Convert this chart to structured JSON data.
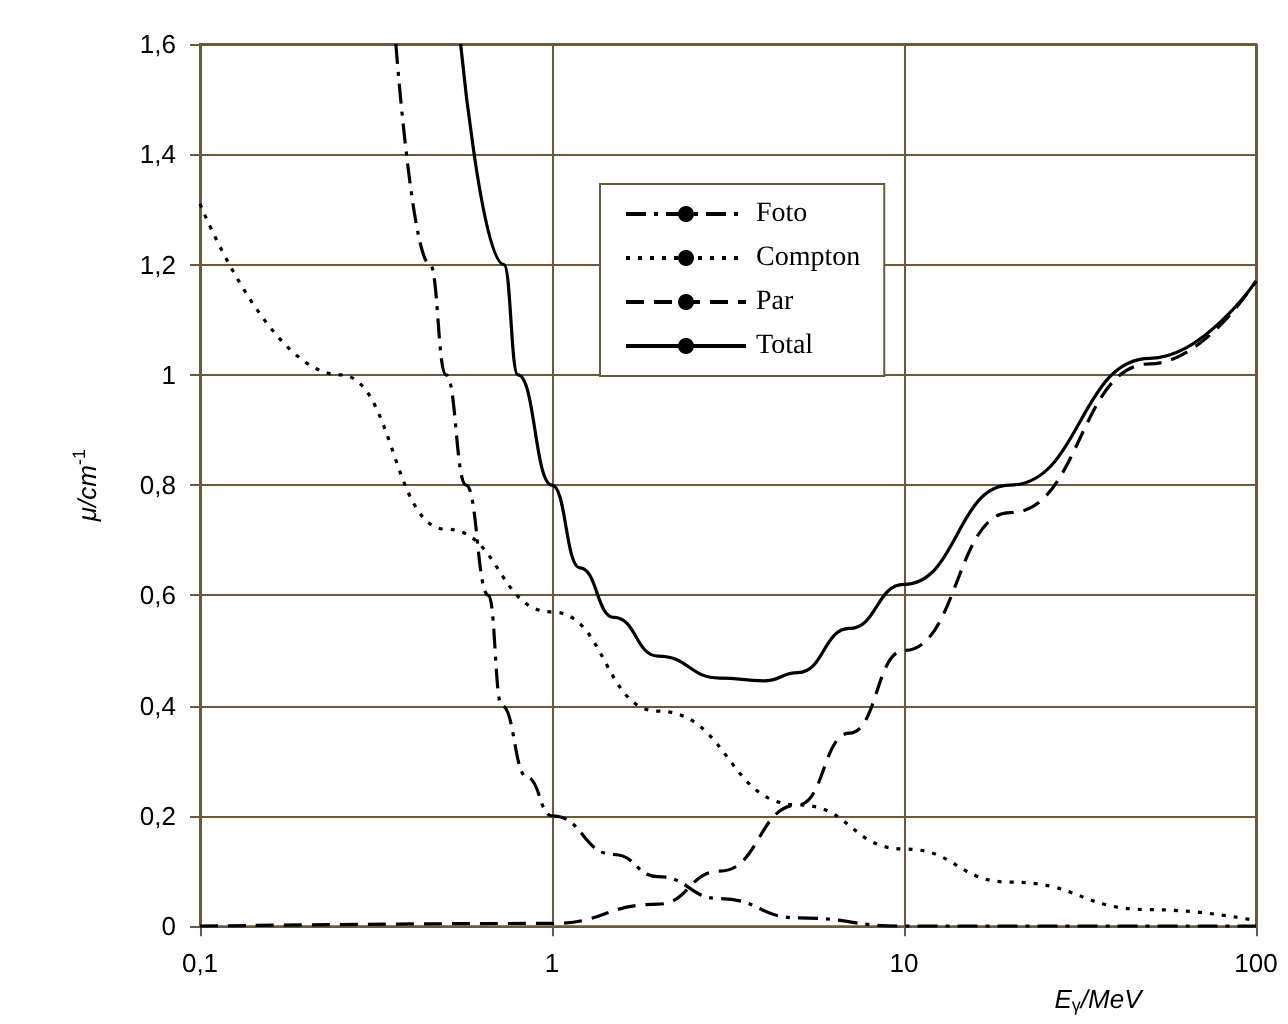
{
  "chart_data": {
    "type": "line",
    "xlabel": "E$_{γ}$/MeV",
    "ylabel": "μ/cm$^{-1}$",
    "log": "x",
    "grid": true,
    "legend": "top",
    "marker": "none",
    "xlim": [
      0.1,
      100
    ],
    "xticks": [
      {
        "value": 0.1,
        "label": "0,1"
      },
      1,
      10,
      100
    ],
    "ylim": [
      0,
      1.6
    ],
    "yticks": [
      0,
      {
        "value": 0.2,
        "label": "0,2"
      },
      {
        "value": 0.4,
        "label": "0,4"
      },
      {
        "value": 0.6,
        "label": "0,6"
      },
      {
        "value": 0.8,
        "label": "0,8"
      },
      1,
      {
        "value": 1.2,
        "label": "1,2"
      },
      {
        "value": 1.4,
        "label": "1,4"
      },
      {
        "value": 1.6,
        "label": "1,6"
      }
    ],
    "series": [
      {
        "name": "Foto",
        "color": "#000000",
        "line_style": "dashdot",
        "x": [
          0.36,
          0.45,
          0.5,
          0.57,
          0.66,
          0.72,
          0.85,
          1,
          1.5,
          2,
          3,
          5,
          10,
          100
        ],
        "values": [
          1.6,
          1.2,
          1.0,
          0.8,
          0.6,
          0.4,
          0.27,
          0.2,
          0.13,
          0.09,
          0.05,
          0.015,
          0,
          0
        ]
      },
      {
        "name": "Compton",
        "color": "#000000",
        "line_style": "dotted",
        "x": [
          0.1,
          0.25,
          0.5,
          1,
          2,
          5,
          10,
          20,
          50,
          100
        ],
        "values": [
          1.31,
          1.0,
          0.72,
          0.57,
          0.39,
          0.22,
          0.14,
          0.08,
          0.03,
          0.01
        ]
      },
      {
        "name": "Par",
        "color": "#000000",
        "line_style": "dashed",
        "x": [
          0.1,
          1,
          2,
          3,
          5,
          7,
          10,
          20,
          50,
          100
        ],
        "values": [
          0,
          0.005,
          0.04,
          0.1,
          0.22,
          0.35,
          0.5,
          0.75,
          1.02,
          1.17
        ]
      },
      {
        "name": "Total",
        "color": "#000000",
        "line_style": "solid",
        "x": [
          0.55,
          0.73,
          0.8,
          1,
          1.2,
          1.5,
          2,
          3,
          4,
          5,
          7,
          10,
          20,
          50,
          100
        ],
        "values": [
          1.6,
          1.2,
          1.0,
          0.8,
          0.65,
          0.56,
          0.49,
          0.45,
          0.445,
          0.46,
          0.54,
          0.62,
          0.8,
          1.03,
          1.17
        ]
      }
    ]
  }
}
